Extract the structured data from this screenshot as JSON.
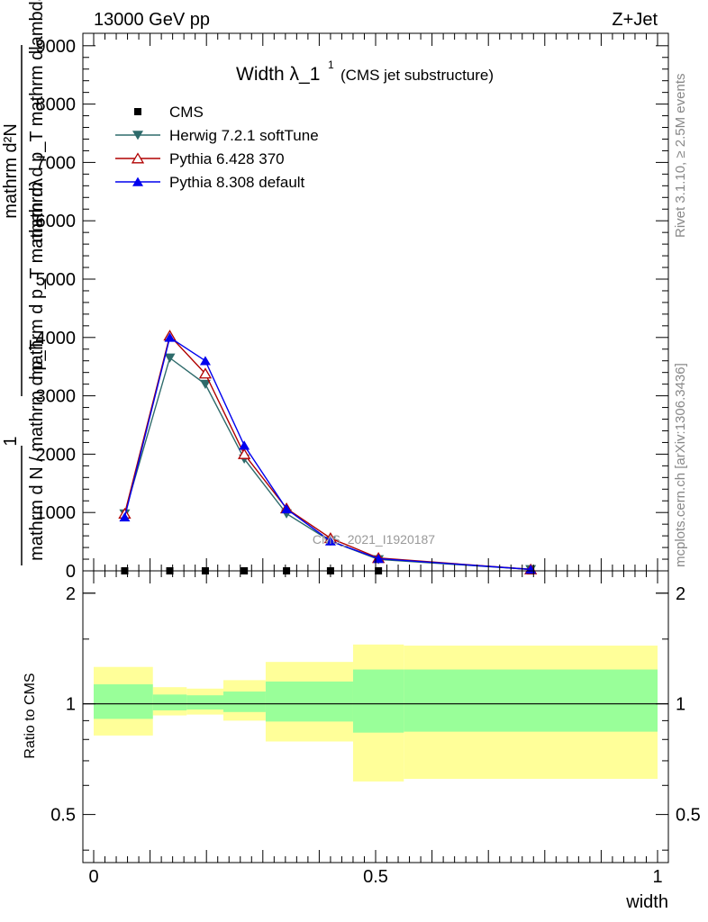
{
  "header": {
    "left": "13000 GeV pp",
    "right": "Z+Jet"
  },
  "side_labels": {
    "rivet": "Rivet 3.1.10, ≥ 2.5M events",
    "mcplots": "mcplots.cern.ch [arXiv:1306.3436]"
  },
  "chart_data": [
    {
      "type": "line",
      "title": "Width λ_1",
      "title_sup": "1",
      "subtitle": "(CMS jet substructure)",
      "watermark": "CMS_2021_I1920187",
      "ylabel_lines": [
        "mathrm d²N",
        "mathrm d p_T mathrm dlambda",
        "mathrm d p_T mathrm dλ",
        "1",
        "mathrm d N / mathrm d p_T"
      ],
      "xlim": [
        0,
        1
      ],
      "ylim": [
        0,
        9200
      ],
      "y_ticks": [
        0,
        1000,
        2000,
        3000,
        4000,
        5000,
        6000,
        7000,
        8000,
        9000
      ],
      "y_tick_labels": [
        "0",
        "1000",
        "2000",
        "3000",
        "4000",
        "5000",
        "6000",
        "7000",
        "8000",
        "9000"
      ],
      "legend_position": "top-left",
      "series": [
        {
          "name": "CMS",
          "color": "#000000",
          "marker": "square",
          "x": [
            0.055,
            0.135,
            0.198,
            0.267,
            0.342,
            0.42,
            0.505,
            0.775
          ],
          "y": [
            0,
            0,
            0,
            0,
            0,
            0,
            0,
            0
          ]
        },
        {
          "name": "Herwig 7.2.1 softTune",
          "color": "#2e6b6b",
          "marker": "triangle-down",
          "x": [
            0.055,
            0.135,
            0.198,
            0.267,
            0.342,
            0.42,
            0.505,
            0.775
          ],
          "y": [
            980,
            3650,
            3200,
            1920,
            980,
            510,
            195,
            25
          ]
        },
        {
          "name": "Pythia 6.428 370",
          "color": "#b00000",
          "marker": "triangle-open",
          "x": [
            0.055,
            0.135,
            0.198,
            0.267,
            0.342,
            0.42,
            0.505,
            0.775
          ],
          "y": [
            980,
            4030,
            3380,
            2000,
            1070,
            560,
            220,
            25
          ]
        },
        {
          "name": "Pythia 8.308 default",
          "color": "#0000ee",
          "marker": "triangle-up",
          "x": [
            0.055,
            0.135,
            0.198,
            0.267,
            0.342,
            0.42,
            0.505,
            0.775
          ],
          "y": [
            920,
            4000,
            3600,
            2150,
            1060,
            510,
            210,
            25
          ]
        }
      ]
    },
    {
      "type": "area",
      "ylabel": "Ratio to CMS",
      "xlabel": "width",
      "xlim": [
        0,
        1
      ],
      "ylim": [
        0.37,
        2.3
      ],
      "log_scale_y": true,
      "x_ticks": [
        0,
        0.5,
        1
      ],
      "x_tick_labels": [
        "0",
        "0.5",
        "1"
      ],
      "y_ticks": [
        0.5,
        1,
        2
      ],
      "y_tick_labels": [
        "0.5",
        "1",
        "2"
      ],
      "reference_line": 1,
      "bin_edges": [
        0,
        0.105,
        0.165,
        0.23,
        0.305,
        0.46,
        0.55,
        1.0
      ],
      "inner_band": {
        "color": "#99ff99",
        "low": [
          0.91,
          0.96,
          0.965,
          0.95,
          0.895,
          0.835,
          0.84
        ],
        "high": [
          1.13,
          1.06,
          1.055,
          1.08,
          1.15,
          1.24,
          1.24
        ]
      },
      "outer_band": {
        "color": "#ffff99",
        "low": [
          0.82,
          0.93,
          0.935,
          0.9,
          0.79,
          0.615,
          0.625
        ],
        "high": [
          1.26,
          1.11,
          1.1,
          1.16,
          1.3,
          1.45,
          1.44
        ]
      }
    }
  ]
}
